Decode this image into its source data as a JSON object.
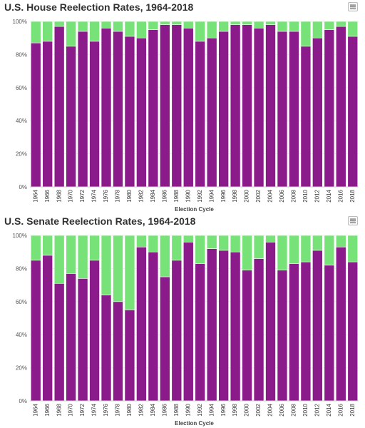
{
  "chart_data": [
    {
      "type": "bar",
      "stacked": true,
      "title": "U.S. House Reelection Rates, 1964-2018",
      "xlabel": "Election Cycle",
      "ylabel": "",
      "ylim": [
        0,
        100
      ],
      "yticks": [
        "0%",
        "20%",
        "40%",
        "60%",
        "80%",
        "100%"
      ],
      "categories": [
        "1964",
        "1966",
        "1968",
        "1970",
        "1972",
        "1974",
        "1976",
        "1978",
        "1980",
        "1982",
        "1984",
        "1986",
        "1988",
        "1990",
        "1992",
        "1994",
        "1996",
        "1998",
        "2000",
        "2002",
        "2004",
        "2006",
        "2008",
        "2010",
        "2012",
        "2014",
        "2016",
        "2018"
      ],
      "series": [
        {
          "color": "#8b1a8b",
          "values": [
            87,
            88,
            97,
            85,
            94,
            88,
            96,
            94,
            91,
            90,
            95,
            98,
            98,
            96,
            88,
            90,
            94,
            98,
            98,
            96,
            98,
            94,
            94,
            85,
            90,
            95,
            97,
            91
          ]
        },
        {
          "color": "#77e277",
          "values": [
            13,
            12,
            3,
            15,
            6,
            12,
            4,
            6,
            9,
            10,
            5,
            2,
            2,
            4,
            12,
            10,
            6,
            2,
            2,
            4,
            2,
            6,
            6,
            15,
            10,
            5,
            3,
            9
          ]
        }
      ],
      "grid": true,
      "legend": "none"
    },
    {
      "type": "bar",
      "stacked": true,
      "title": "U.S. Senate Reelection Rates, 1964-2018",
      "xlabel": "Election Cycle",
      "ylabel": "",
      "ylim": [
        0,
        100
      ],
      "yticks": [
        "0%",
        "20%",
        "40%",
        "60%",
        "80%",
        "100%"
      ],
      "categories": [
        "1964",
        "1966",
        "1968",
        "1970",
        "1972",
        "1974",
        "1976",
        "1978",
        "1980",
        "1982",
        "1984",
        "1986",
        "1988",
        "1990",
        "1992",
        "1994",
        "1996",
        "1998",
        "2000",
        "2002",
        "2004",
        "2006",
        "2008",
        "2010",
        "2012",
        "2014",
        "2016",
        "2018"
      ],
      "series": [
        {
          "color": "#8b1a8b",
          "values": [
            85,
            88,
            71,
            77,
            74,
            85,
            64,
            60,
            55,
            93,
            90,
            75,
            85,
            96,
            83,
            92,
            91,
            90,
            79,
            86,
            96,
            79,
            83,
            84,
            91,
            82,
            93,
            84
          ]
        },
        {
          "color": "#77e277",
          "values": [
            15,
            12,
            29,
            23,
            26,
            15,
            36,
            40,
            45,
            7,
            10,
            25,
            15,
            4,
            17,
            8,
            9,
            10,
            21,
            14,
            4,
            21,
            17,
            16,
            9,
            18,
            7,
            16
          ]
        }
      ],
      "grid": true,
      "legend": "none"
    }
  ]
}
